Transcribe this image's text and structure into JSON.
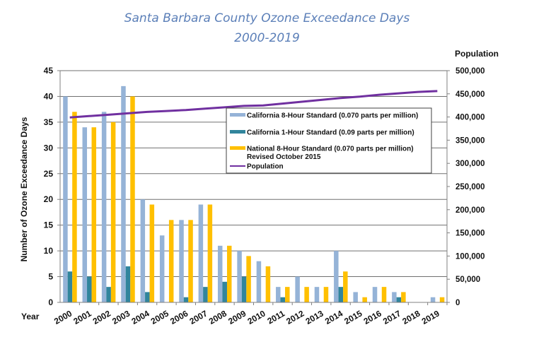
{
  "chart_data": {
    "type": "bar",
    "title": "Santa Barbara County Ozone Exceedance Days",
    "subtitle": "2000-2019",
    "xlabel": "Year",
    "ylabel": "Number of Ozone Exceedance Days",
    "y2label": "Population",
    "ylim": [
      0,
      45
    ],
    "y2lim": [
      0,
      500000
    ],
    "yticks": [
      "0",
      "5",
      "10",
      "15",
      "20",
      "25",
      "30",
      "35",
      "40",
      "45"
    ],
    "y2ticks": [
      "0",
      "50,000",
      "100,000",
      "150,000",
      "200,000",
      "250,000",
      "300,000",
      "350,000",
      "400,000",
      "450,000",
      "500,000"
    ],
    "grid": true,
    "legend_position": "center-right",
    "categories": [
      "2000",
      "2001",
      "2002",
      "2003",
      "2004",
      "2005",
      "2006",
      "2007",
      "2008",
      "2009",
      "2010",
      "2011",
      "2012",
      "2013",
      "2014",
      "2015",
      "2016",
      "2017",
      "2018",
      "2019"
    ],
    "series": [
      {
        "name": "California 8-Hour Standard (0.070 parts per million)",
        "type": "bar",
        "color": "#95b3d7",
        "values": [
          40,
          34,
          37,
          42,
          20,
          13,
          16,
          19,
          11,
          10,
          8,
          3,
          5,
          3,
          10,
          2,
          3,
          2,
          0,
          1
        ]
      },
      {
        "name": "California 1-Hour Standard (0.09 parts per million)",
        "type": "bar",
        "color": "#31859c",
        "values": [
          6,
          5,
          3,
          7,
          2,
          0,
          1,
          3,
          4,
          5,
          0,
          1,
          0,
          0,
          3,
          0,
          0,
          1,
          0,
          0
        ]
      },
      {
        "name": "National 8-Hour Standard (0.070 parts per million)",
        "name_line2": "Revised October 2015",
        "type": "bar",
        "color": "#ffc000",
        "values": [
          37,
          34,
          35,
          40,
          19,
          16,
          16,
          19,
          11,
          9,
          7,
          3,
          3,
          3,
          6,
          1,
          3,
          2,
          0,
          1
        ]
      },
      {
        "name": "Population",
        "type": "line",
        "axis": "right",
        "color": "#7030a0",
        "values": [
          399000,
          402000,
          405000,
          408000,
          411000,
          413000,
          415000,
          418000,
          421000,
          424000,
          425000,
          429000,
          433000,
          437000,
          441000,
          444000,
          448000,
          451000,
          454000,
          456000
        ]
      }
    ]
  }
}
